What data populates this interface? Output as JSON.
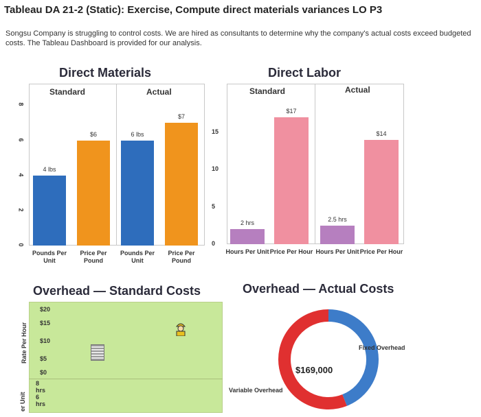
{
  "title": "Tableau DA 21-2 (Static): Exercise, Compute direct materials variances LO P3",
  "intro": "Songsu Company is struggling to control costs. We are hired as consultants to determine why the company's actual costs exceed budgeted costs. The Tableau Dashboard is provided for our analysis.",
  "materials": {
    "heading": "Direct Materials",
    "standard_label": "Standard",
    "actual_label": "Actual",
    "y_ticks": [
      "8",
      "6",
      "4",
      "2",
      "0"
    ],
    "colors": {
      "blue": "#2e6dbc",
      "orange": "#f0941d"
    },
    "chart_data": {
      "type": "bar",
      "categories": [
        "Pounds Per Unit",
        "Price Per Pound",
        "Pounds Per Unit",
        "Price Per Pound"
      ],
      "groups": [
        "Standard",
        "Standard",
        "Actual",
        "Actual"
      ],
      "values": [
        4,
        6,
        6,
        7
      ],
      "data_labels": [
        "4 lbs",
        "$6",
        "6 lbs",
        "$7"
      ],
      "ylim": [
        0,
        8.6
      ]
    }
  },
  "labor": {
    "heading": "Direct Labor",
    "standard_label": "Standard",
    "actual_label": "Actual",
    "y_ticks": [
      "15",
      "10",
      "5",
      "0"
    ],
    "colors": {
      "purple": "#b67fbf",
      "pink": "#f090a0"
    },
    "chart_data": {
      "type": "bar",
      "categories": [
        "Hours Per Unit",
        "Price Per Hour",
        "Hours Per Unit",
        "Price Per Hour"
      ],
      "groups": [
        "Standard",
        "Standard",
        "Actual",
        "Actual"
      ],
      "values": [
        2,
        17,
        2.5,
        14
      ],
      "data_labels": [
        "2 hrs",
        "$17",
        "2.5 hrs",
        "$14"
      ],
      "ylim": [
        0,
        19.5
      ]
    }
  },
  "overhead_standard": {
    "heading": "Overhead — Standard Costs",
    "axis_label_top": "Rate Per Hour",
    "axis_label_bottom": "er Unit",
    "rate_ticks": [
      "$20",
      "$15",
      "$10",
      "$5",
      "$0"
    ],
    "hour_ticks": [
      "8 hrs",
      "6 hrs"
    ],
    "color": "#c8e89a"
  },
  "overhead_actual": {
    "heading": "Overhead — Actual Costs",
    "center_value": "$169,000",
    "label_fixed": "Fixed Overhead",
    "label_variable": "Variable Overhead",
    "chart_data": {
      "type": "pie",
      "labels": [
        "Fixed Overhead",
        "Variable Overhead"
      ],
      "values": [
        44,
        56
      ],
      "colors": [
        "#3d7cc9",
        "#e03030"
      ],
      "total": "$169,000"
    }
  }
}
